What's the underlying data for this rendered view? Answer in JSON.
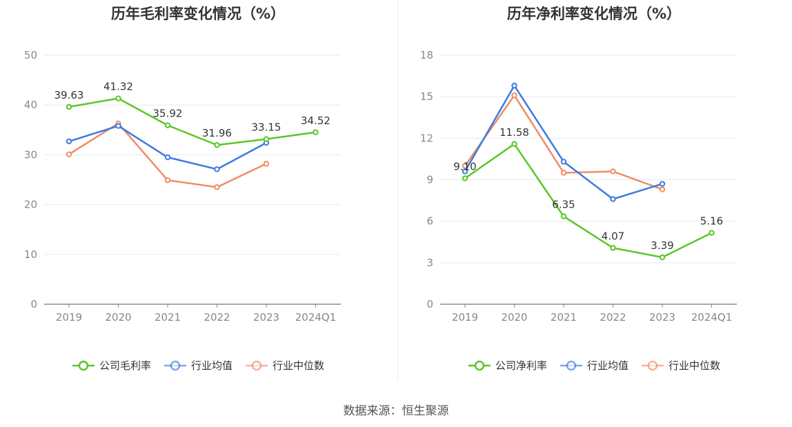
{
  "source_text": "数据来源：恒生聚源",
  "chart_data": [
    {
      "type": "line",
      "title": "历年毛利率变化情况（%）",
      "categories": [
        "2019",
        "2020",
        "2021",
        "2022",
        "2023",
        "2024Q1"
      ],
      "ylim": [
        0,
        50
      ],
      "yticks": [
        0,
        10,
        20,
        30,
        40,
        50
      ],
      "grid": true,
      "legend_position": "bottom",
      "series": [
        {
          "name": "公司毛利率",
          "color": "#5ac626",
          "values": [
            39.63,
            41.32,
            35.92,
            31.96,
            33.15,
            34.52
          ],
          "labels": [
            "39.63",
            "41.32",
            "35.92",
            "31.96",
            "33.15",
            "34.52"
          ]
        },
        {
          "name": "行业均值",
          "color": "#3d7ae0",
          "values": [
            32.7,
            35.8,
            29.5,
            27.1,
            32.4,
            null
          ]
        },
        {
          "name": "行业中位数",
          "color": "#f08c63",
          "values": [
            30.1,
            36.3,
            24.9,
            23.5,
            28.2,
            null
          ]
        }
      ]
    },
    {
      "type": "line",
      "title": "历年净利率变化情况（%）",
      "categories": [
        "2019",
        "2020",
        "2021",
        "2022",
        "2023",
        "2024Q1"
      ],
      "ylim": [
        0,
        18
      ],
      "yticks": [
        0,
        3,
        6,
        9,
        12,
        15,
        18
      ],
      "grid": true,
      "legend_position": "bottom",
      "series": [
        {
          "name": "公司净利率",
          "color": "#5ac626",
          "values": [
            9.1,
            11.58,
            6.35,
            4.07,
            3.39,
            5.16
          ],
          "labels": [
            "9.10",
            "11.58",
            "6.35",
            "4.07",
            "3.39",
            "5.16"
          ]
        },
        {
          "name": "行业均值",
          "color": "#3d7ae0",
          "values": [
            9.6,
            15.8,
            10.3,
            7.6,
            8.7,
            null
          ]
        },
        {
          "name": "行业中位数",
          "color": "#f08c63",
          "values": [
            10.0,
            15.1,
            9.5,
            9.6,
            8.3,
            null
          ]
        }
      ]
    }
  ]
}
